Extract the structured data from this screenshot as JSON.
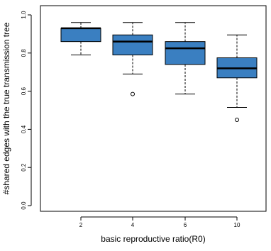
{
  "chart_data": {
    "type": "box",
    "xlabel": "basic reproductive ratio(R0)",
    "ylabel": "#shared edges with the true transmission tree",
    "ylim": [
      0.0,
      1.0
    ],
    "yticks": [
      "0.0",
      "0.2",
      "0.4",
      "0.6",
      "0.8",
      "1.0"
    ],
    "categories": [
      "2",
      "4",
      "6",
      "10"
    ],
    "box_color": "#3a7fc1",
    "grid": false,
    "boxes": [
      {
        "category": "2",
        "whisker_low": 0.79,
        "q1": 0.86,
        "median": 0.93,
        "q3": 0.93,
        "whisker_high": 0.96,
        "outliers": []
      },
      {
        "category": "4",
        "whisker_low": 0.69,
        "q1": 0.79,
        "median": 0.86,
        "q3": 0.895,
        "whisker_high": 0.96,
        "outliers": [
          0.585
        ]
      },
      {
        "category": "6",
        "whisker_low": 0.585,
        "q1": 0.74,
        "median": 0.825,
        "q3": 0.86,
        "whisker_high": 0.96,
        "outliers": []
      },
      {
        "category": "10",
        "whisker_low": 0.515,
        "q1": 0.67,
        "median": 0.72,
        "q3": 0.775,
        "whisker_high": 0.895,
        "outliers": [
          0.45
        ]
      }
    ]
  }
}
